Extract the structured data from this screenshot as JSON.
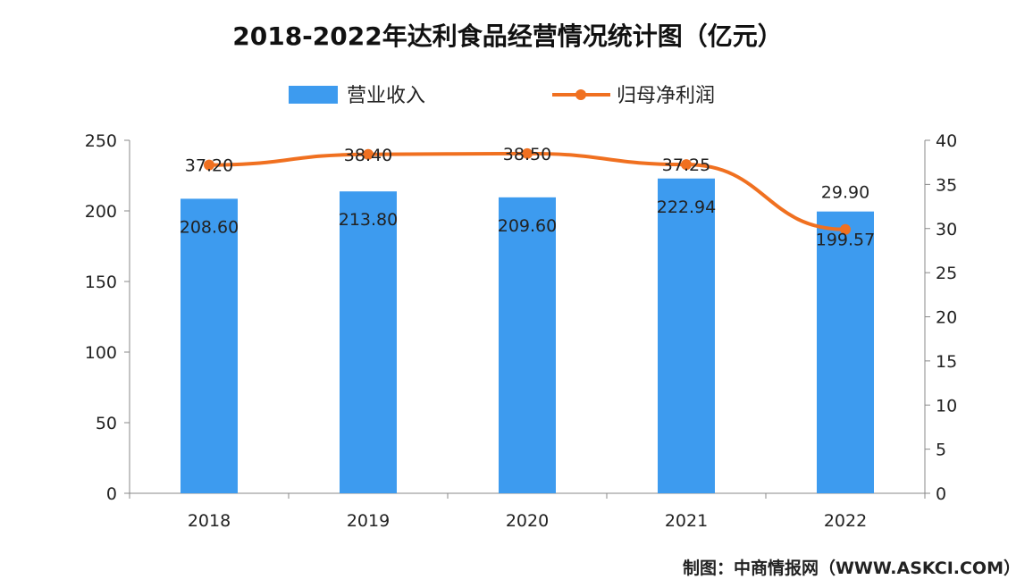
{
  "chart_data": {
    "type": "bar+line",
    "title": "2018-2022年达利食品经营情况统计图（亿元）",
    "categories": [
      "2018",
      "2019",
      "2020",
      "2021",
      "2022"
    ],
    "series": [
      {
        "name": "营业收入",
        "type": "bar",
        "axis": "left",
        "values": [
          208.6,
          213.8,
          209.6,
          222.94,
          199.57
        ],
        "labels": [
          "208.60",
          "213.80",
          "209.60",
          "222.94",
          "199.57"
        ],
        "color": "#3d9bef"
      },
      {
        "name": "归母净利润",
        "type": "line",
        "axis": "right",
        "values": [
          37.2,
          38.4,
          38.5,
          37.25,
          29.9
        ],
        "labels": [
          "37.20",
          "38.40",
          "38.50",
          "37.25",
          "29.90"
        ],
        "color": "#f07020"
      }
    ],
    "left_axis": {
      "ylim": [
        0,
        250
      ],
      "ticks": [
        "0",
        "50",
        "100",
        "150",
        "200",
        "250"
      ]
    },
    "right_axis": {
      "ylim": [
        0,
        40
      ],
      "ticks": [
        "0",
        "5",
        "10",
        "15",
        "20",
        "25",
        "30",
        "35",
        "40"
      ]
    },
    "grid": false,
    "legend_position": "top"
  },
  "source": "制图：中商情报网（WWW.ASKCI.COM）"
}
